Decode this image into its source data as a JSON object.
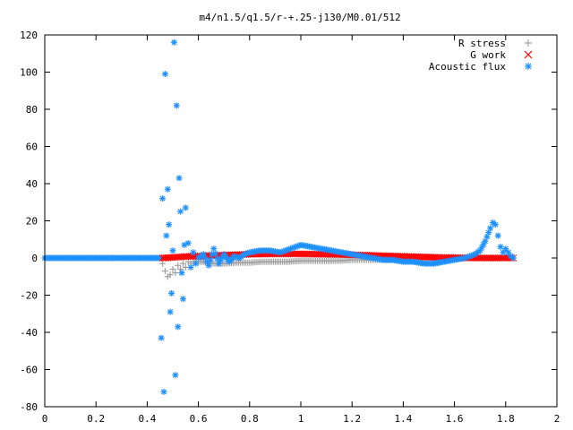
{
  "chart_data": {
    "type": "scatter",
    "title": "m4/n1.5/q1.5/r-+.25-j130/M0.01/512",
    "xlabel": "",
    "ylabel": "",
    "xlim": [
      0,
      2
    ],
    "ylim": [
      -80,
      120
    ],
    "x_ticks": [
      0,
      0.2,
      0.4,
      0.6,
      0.8,
      1,
      1.2,
      1.4,
      1.6,
      1.8,
      2
    ],
    "y_ticks": [
      -80,
      -60,
      -40,
      -20,
      0,
      20,
      40,
      60,
      80,
      100,
      120
    ],
    "x_tick_labels": [
      "0",
      "0.2",
      "0.4",
      "0.6",
      "0.8",
      "1",
      "1.2",
      "1.4",
      "1.6",
      "1.8",
      "2"
    ],
    "y_tick_labels": [
      "-80",
      "-60",
      "-40",
      "-20",
      "0",
      "20",
      "40",
      "60",
      "80",
      "100",
      "120"
    ],
    "grid": false,
    "legend_position": "top-right",
    "series": [
      {
        "name": "R stress",
        "marker": "plus",
        "color": "#a0a0a0",
        "x": [
          0.46,
          0.47,
          0.48,
          0.49,
          0.5,
          0.51,
          0.52,
          0.53,
          0.54,
          0.55,
          0.56,
          0.57,
          0.58,
          0.6,
          0.62,
          0.65,
          0.7,
          0.75,
          0.8,
          0.85,
          0.9,
          0.95,
          1.0,
          1.05,
          1.1,
          1.15,
          1.2,
          1.25,
          1.3,
          1.35,
          1.4,
          1.45,
          1.5,
          1.55,
          1.6,
          1.65,
          1.7,
          1.75,
          1.8,
          1.83
        ],
        "y": [
          -3,
          -7,
          -10,
          -9,
          -6,
          -8,
          -4,
          -6,
          -3,
          -5,
          -2,
          -3,
          -2,
          -2,
          -2,
          -3,
          -3,
          -2.5,
          -2.5,
          -2,
          -2,
          -2,
          -1.5,
          -1.5,
          -1.5,
          -1.5,
          -1,
          -1,
          -1,
          -1,
          -1,
          -0.5,
          -0.5,
          -0.5,
          -0.5,
          0,
          0,
          0,
          0,
          0
        ]
      },
      {
        "name": "G work",
        "marker": "cross",
        "color": "#ff0000",
        "x": [
          0.46,
          0.5,
          0.55,
          0.6,
          0.65,
          0.7,
          0.75,
          0.8,
          0.85,
          0.9,
          0.95,
          1.0,
          1.05,
          1.1,
          1.15,
          1.2,
          1.25,
          1.3,
          1.35,
          1.4,
          1.45,
          1.5,
          1.55,
          1.6,
          1.65,
          1.7,
          1.75,
          1.8,
          1.83
        ],
        "y": [
          0,
          0.3,
          0.8,
          1,
          1.3,
          1.6,
          1.8,
          2,
          2.1,
          2.2,
          2.2,
          2.2,
          2.1,
          2,
          1.9,
          1.7,
          1.5,
          1.3,
          1.1,
          0.9,
          0.7,
          0.5,
          0.3,
          0.2,
          0.1,
          0,
          0,
          0,
          0
        ]
      },
      {
        "name": "Acoustic flux",
        "marker": "star",
        "color": "#1e90ff",
        "x": [
          0.455,
          0.46,
          0.465,
          0.47,
          0.475,
          0.48,
          0.485,
          0.49,
          0.495,
          0.5,
          0.505,
          0.51,
          0.515,
          0.52,
          0.525,
          0.53,
          0.535,
          0.54,
          0.545,
          0.55,
          0.56,
          0.57,
          0.58,
          0.59,
          0.6,
          0.62,
          0.64,
          0.66,
          0.68,
          0.7,
          0.72,
          0.74,
          0.76,
          0.78,
          0.8,
          0.84,
          0.88,
          0.92,
          0.96,
          1.0,
          1.04,
          1.08,
          1.12,
          1.16,
          1.2,
          1.24,
          1.28,
          1.32,
          1.36,
          1.4,
          1.44,
          1.48,
          1.52,
          1.56,
          1.6,
          1.64,
          1.68,
          1.7,
          1.72,
          1.74,
          1.75,
          1.76,
          1.77,
          1.78,
          1.79,
          1.8,
          1.81,
          1.82,
          1.83
        ],
        "y": [
          -43,
          32,
          -72,
          99,
          12,
          37,
          18,
          -29,
          -19,
          4,
          116,
          -63,
          82,
          -37,
          43,
          25,
          -8,
          -22,
          7,
          27,
          8,
          -5,
          3,
          -3,
          0,
          2,
          -4,
          5,
          -3,
          2,
          -2,
          1,
          0,
          2,
          3,
          4,
          4,
          3,
          5,
          7,
          6,
          5,
          4,
          3,
          2,
          1,
          0,
          -1,
          -1,
          -2,
          -2,
          -3,
          -3,
          -2,
          -1,
          0,
          2,
          4,
          9,
          16,
          19,
          18,
          12,
          6,
          3,
          5,
          3,
          1,
          0
        ]
      }
    ]
  }
}
